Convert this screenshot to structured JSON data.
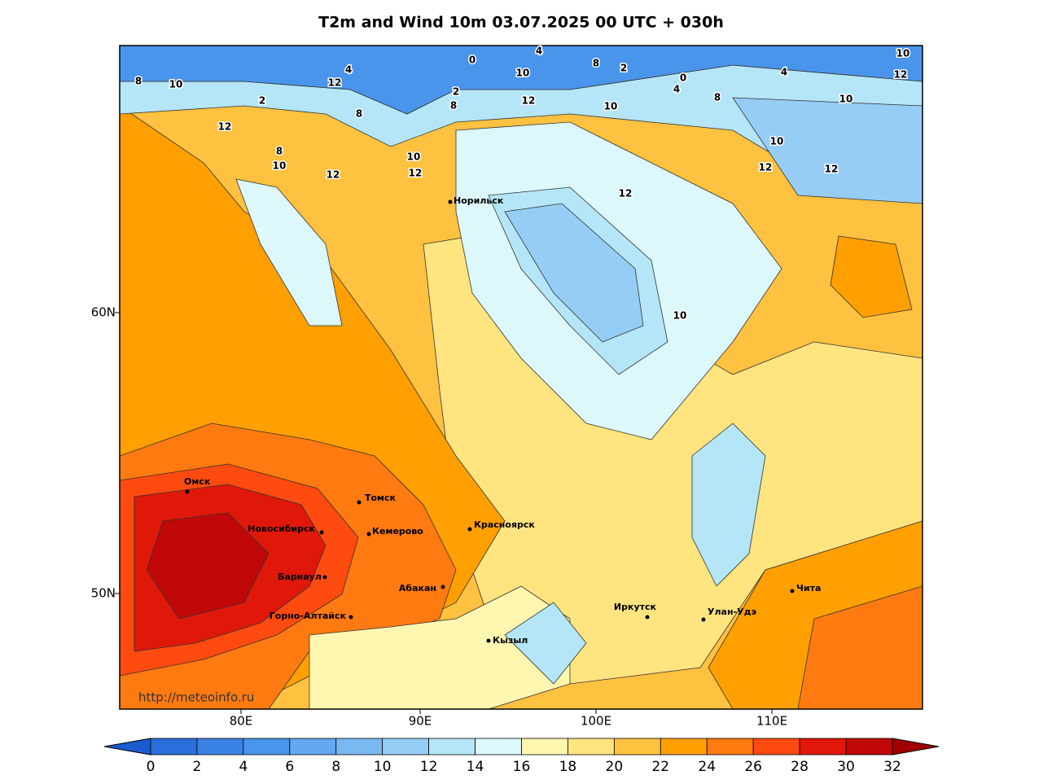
{
  "title": "T2m and Wind 10m 03.07.2025 00 UTC + 030h",
  "lon_labels": [
    "80E",
    "90E",
    "100E",
    "110E"
  ],
  "lat_labels": [
    "60N",
    "50N"
  ],
  "cities": [
    "Норильск",
    "Омск",
    "Томск",
    "Новосибирск",
    "Кемерово",
    "Красноярск",
    "Барнаул",
    "Абакан",
    "Горно-Алтайск",
    "Кызыл",
    "Иркутск",
    "Улан-Удэ",
    "Чита"
  ],
  "contour_labels": [
    8,
    10,
    2,
    12,
    4,
    12,
    8,
    8,
    10,
    12,
    10,
    12,
    0,
    4,
    2,
    8,
    10,
    12,
    10,
    8,
    2,
    0,
    4,
    8,
    4,
    10,
    10,
    12,
    10,
    12,
    12,
    10,
    12
  ],
  "watermark": "http://meteoinfo.ru",
  "colorbar": {
    "levels": [
      0,
      2,
      4,
      6,
      8,
      10,
      12,
      14,
      16,
      18,
      20,
      22,
      24,
      26,
      28,
      30,
      32
    ],
    "colors": [
      "#2a6fdb",
      "#3a82e4",
      "#4a95ec",
      "#63a8f0",
      "#7ab8f2",
      "#96cdf5",
      "#b4e6f8",
      "#dcf8fb",
      "#fff6b0",
      "#ffe480",
      "#ffc140",
      "#ff9f00",
      "#ff7a10",
      "#ff4a10",
      "#e0180a",
      "#c00808"
    ],
    "under_color": "#1a5cd0",
    "over_color": "#a00000"
  }
}
